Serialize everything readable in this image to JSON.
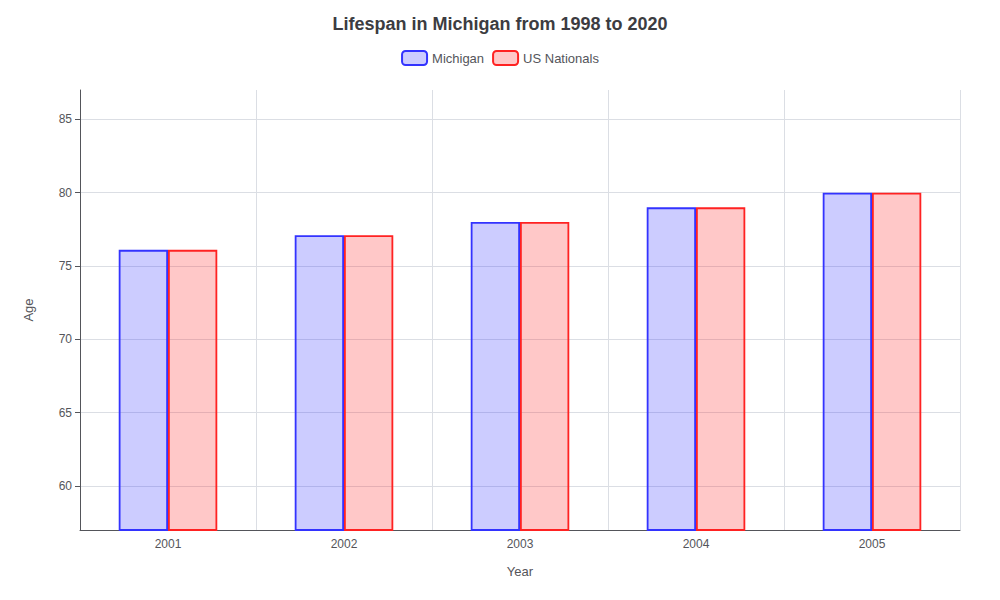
{
  "chart_data": {
    "type": "bar",
    "title": "Lifespan in Michigan from 1998 to 2020",
    "xlabel": "Year",
    "ylabel": "Age",
    "categories": [
      2001,
      2002,
      2003,
      2004,
      2005
    ],
    "series": [
      {
        "name": "Michigan",
        "color": "#3333ff",
        "values": [
          76.1,
          77.1,
          78.0,
          79.0,
          80.0
        ]
      },
      {
        "name": "US Nationals",
        "color": "#ff2222",
        "values": [
          76.1,
          77.1,
          78.0,
          79.0,
          80.0
        ]
      }
    ],
    "ylim": [
      57,
      87
    ],
    "yticks": [
      60,
      65,
      70,
      75,
      80,
      85
    ],
    "grid": true,
    "legend": "top"
  }
}
